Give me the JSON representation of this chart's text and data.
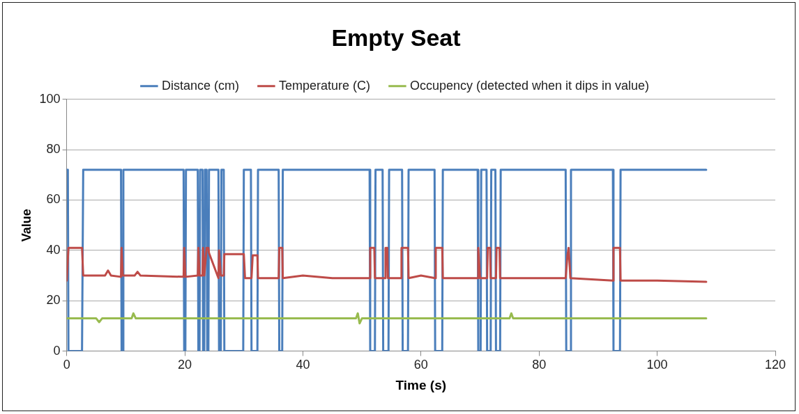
{
  "chart_data": {
    "type": "line",
    "title": "Empty Seat",
    "xlabel": "Time (s)",
    "ylabel": "Value",
    "xlim": [
      0,
      120
    ],
    "xticks": [
      0,
      20,
      40,
      60,
      80,
      100,
      120
    ],
    "ylim": [
      0,
      100
    ],
    "yticks": [
      0,
      20,
      40,
      60,
      80,
      100
    ],
    "grid": "y",
    "legend": "top",
    "marker": "none",
    "line_style": "solid",
    "series": [
      {
        "name": "Distance (cm)",
        "color": "#4a7ebb",
        "x": [
          0,
          0.2,
          0.3,
          2.6,
          2.8,
          9.2,
          9.3,
          9.5,
          9.6,
          19.8,
          19.9,
          20.1,
          20.2,
          22.2,
          22.3,
          22.5,
          22.6,
          23,
          23.1,
          23.3,
          23.4,
          23.7,
          23.8,
          24,
          24.1,
          25.7,
          25.8,
          26.1,
          26.2,
          26.6,
          26.7,
          29.9,
          30,
          31.2,
          31.3,
          32.3,
          32.4,
          35.9,
          36,
          36.5,
          36.6,
          51.3,
          51.4,
          52.2,
          52.3,
          53.5,
          53.6,
          54.5,
          54.6,
          56.8,
          56.9,
          57.8,
          57.9,
          62.3,
          62.4,
          63.6,
          63.7,
          69.6,
          69.7,
          70.1,
          70.2,
          71.1,
          71.2,
          71.8,
          71.9,
          72.6,
          72.7,
          73.4,
          73.5,
          84.5,
          84.6,
          85.3,
          85.4,
          92.5,
          92.6,
          93.7,
          93.8,
          108.3
        ],
        "values": [
          72,
          72,
          0,
          0,
          72,
          72,
          0,
          0,
          72,
          72,
          0,
          0,
          72,
          72,
          0,
          0,
          72,
          72,
          0,
          0,
          72,
          72,
          0,
          0,
          72,
          72,
          0,
          0,
          72,
          72,
          0,
          0,
          72,
          72,
          0,
          0,
          72,
          72,
          0,
          0,
          72,
          72,
          0,
          0,
          72,
          72,
          0,
          0,
          72,
          72,
          0,
          0,
          72,
          72,
          0,
          0,
          72,
          72,
          0,
          0,
          72,
          72,
          0,
          0,
          72,
          72,
          0,
          0,
          72,
          72,
          0,
          0,
          72,
          72,
          0,
          0,
          72,
          72
        ]
      },
      {
        "name": "Temperature (C)",
        "color": "#be4b48",
        "x": [
          0,
          0.3,
          2.6,
          2.8,
          6.5,
          7,
          7.5,
          9.2,
          9.3,
          9.5,
          11.5,
          12,
          12.5,
          19.8,
          19.9,
          20.1,
          22.2,
          22.3,
          22.5,
          23,
          23.1,
          23.3,
          23.7,
          24,
          24.1,
          25.7,
          25.8,
          26.1,
          26.6,
          26.7,
          30,
          30.2,
          31.3,
          31.5,
          32.3,
          32.4,
          35.9,
          36,
          36.5,
          36.6,
          40,
          45,
          51.3,
          51.4,
          52.1,
          52.2,
          53.9,
          54,
          54.3,
          54.4,
          56.6,
          56.7,
          57.8,
          57.9,
          60,
          62.4,
          62.5,
          63.6,
          63.7,
          69.6,
          69.7,
          70,
          71.2,
          71.3,
          71.7,
          71.8,
          72.7,
          72.8,
          73.3,
          73.4,
          78,
          84.5,
          84.8,
          85,
          85.3,
          92.5,
          92.6,
          93.7,
          93.8,
          100,
          108.3
        ],
        "values": [
          28,
          41,
          41,
          30,
          30,
          32,
          30,
          29.5,
          41,
          30,
          30,
          31.5,
          30,
          29.5,
          41,
          29.5,
          30,
          41,
          30,
          30,
          41,
          30,
          41,
          41,
          39,
          29,
          40,
          30,
          30,
          38.5,
          38.5,
          29,
          29,
          38,
          38,
          29,
          29,
          41,
          41,
          29,
          30,
          29,
          29,
          41,
          41,
          29,
          29,
          41,
          41,
          29,
          29,
          41,
          41,
          29,
          30,
          29,
          41,
          41,
          29,
          29,
          41,
          29,
          29,
          41,
          41,
          29,
          29,
          41,
          41,
          29,
          29,
          29,
          38,
          41,
          29,
          28,
          41,
          41,
          28,
          28,
          27.5
        ]
      },
      {
        "name": "Occupency (detected when it dips in value)",
        "color": "#98bb4f",
        "x": [
          0,
          5,
          5.5,
          6,
          11,
          11.3,
          11.7,
          49,
          49.3,
          49.6,
          50,
          75,
          75.3,
          75.6,
          108.3
        ],
        "values": [
          13,
          13,
          11.5,
          13,
          13,
          15,
          13,
          13,
          15,
          11,
          13,
          13,
          15,
          13,
          13
        ]
      }
    ]
  }
}
